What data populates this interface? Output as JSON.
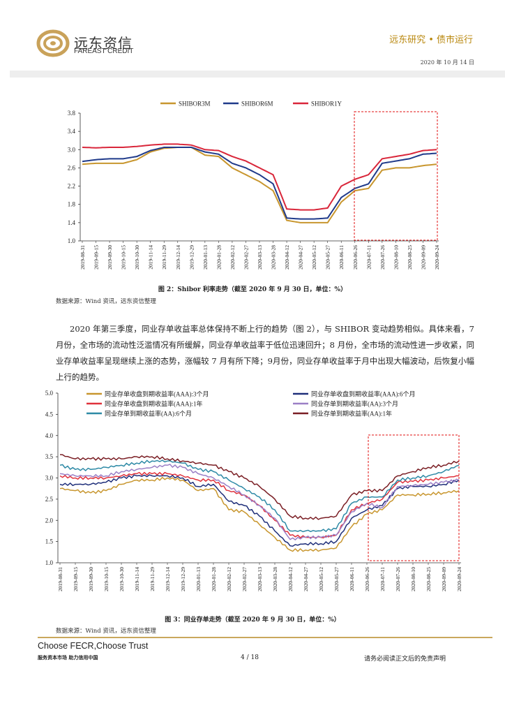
{
  "header": {
    "logo_cn": "远东资信",
    "logo_en": "FAREAST CREDIT",
    "series": "远东研究 • 债市运行",
    "date": "2020 年 10 月 14 日"
  },
  "figure2": {
    "caption": "图 2：Shibor 利率走势（截至 2020 年 9 月 30 日，单位：%）",
    "source": "数据来源：Wind 资讯，远东资信整理"
  },
  "paragraph": "2020 年第三季度，同业存单收益率总体保持不断上行的趋势（图 2），与 SHIBOR 变动趋势相似。具体来看，7 月份，全市场的流动性泛滥情况有所缓解，同业存单收益率于低位迅速回升；8 月份，全市场的流动性进一步收紧，同业存单收益率呈现继续上涨的态势，涨幅较 7 月有所下降；9月份，同业存单收益率于月中出现大幅波动，后恢复小幅上行的趋势。",
  "figure3": {
    "caption": "图 3：同业存单走势（截至 2020 年 9 月 30 日，单位：%）",
    "source": "数据来源：Wind 资讯，远东资信整理"
  },
  "footer": {
    "slogan": "Choose FECR,Choose Trust",
    "slogan2": "服务资本市场  助力信用中国",
    "page": "4  /  18",
    "disclaimer": "请务必阅读正文后的免责声明"
  },
  "chart_data": [
    {
      "type": "line",
      "title": "",
      "ylim": [
        1.0,
        3.8
      ],
      "yticks": [
        "1.0",
        "1.4",
        "1.8",
        "2.2",
        "2.6",
        "3.0",
        "3.4",
        "3.8"
      ],
      "categories": [
        "2019-08-31",
        "2019-09-15",
        "2019-09-30",
        "2019-10-15",
        "2019-10-30",
        "2019-11-14",
        "2019-11-29",
        "2019-12-14",
        "2019-12-29",
        "2020-01-13",
        "2020-01-28",
        "2020-02-12",
        "2020-02-27",
        "2020-03-13",
        "2020-03-28",
        "2020-04-12",
        "2020-04-27",
        "2020-05-12",
        "2020-05-27",
        "2020-06-11",
        "2020-06-26",
        "2020-07-11",
        "2020-07-26",
        "2020-08-10",
        "2020-08-25",
        "2020-09-09",
        "2020-09-24"
      ],
      "legend": "top",
      "highlight": "2020-07-01 to 2020-09-30",
      "series": [
        {
          "name": "SHIBOR3M",
          "color": "#c8962e",
          "values": [
            2.68,
            2.7,
            2.7,
            2.7,
            2.78,
            2.95,
            3.03,
            3.05,
            3.05,
            2.88,
            2.85,
            2.6,
            2.45,
            2.3,
            2.1,
            1.45,
            1.4,
            1.4,
            1.4,
            1.85,
            2.1,
            2.15,
            2.55,
            2.6,
            2.6,
            2.65,
            2.68
          ]
        },
        {
          "name": "SHIBOR6M",
          "color": "#1f3a8a",
          "values": [
            2.74,
            2.78,
            2.8,
            2.8,
            2.85,
            2.98,
            3.05,
            3.05,
            3.05,
            2.95,
            2.9,
            2.7,
            2.6,
            2.45,
            2.25,
            1.5,
            1.48,
            1.48,
            1.5,
            1.95,
            2.15,
            2.25,
            2.7,
            2.75,
            2.8,
            2.9,
            2.92
          ]
        },
        {
          "name": "SHIBOR1Y",
          "color": "#d9263a",
          "values": [
            3.05,
            3.04,
            3.05,
            3.05,
            3.07,
            3.1,
            3.12,
            3.12,
            3.1,
            3.0,
            2.98,
            2.85,
            2.75,
            2.6,
            2.45,
            1.7,
            1.68,
            1.68,
            1.72,
            2.2,
            2.35,
            2.45,
            2.8,
            2.85,
            2.9,
            2.98,
            3.0
          ]
        }
      ]
    },
    {
      "type": "line",
      "title": "",
      "ylim": [
        1.0,
        5.0
      ],
      "yticks": [
        "1.0",
        "1.5",
        "2.0",
        "2.5",
        "3.0",
        "3.5",
        "4.0",
        "4.5",
        "5.0"
      ],
      "categories": [
        "2019-08-31",
        "2019-09-15",
        "2019-09-30",
        "2019-10-15",
        "2019-10-30",
        "2019-11-14",
        "2019-11-29",
        "2019-12-14",
        "2019-12-29",
        "2020-01-13",
        "2020-01-28",
        "2020-02-12",
        "2020-02-27",
        "2020-03-13",
        "2020-03-28",
        "2020-04-12",
        "2020-04-27",
        "2020-05-12",
        "2020-05-27",
        "2020-06-11",
        "2020-06-26",
        "2020-07-11",
        "2020-07-26",
        "2020-08-10",
        "2020-08-25",
        "2020-09-09",
        "2020-09-24"
      ],
      "legend": "top",
      "highlight": "2020-07-01 to 2020-09-30",
      "series": [
        {
          "name": "同业存单收盘到期收益率(AAA):3个月",
          "color": "#c8962e",
          "values": [
            2.75,
            2.7,
            2.65,
            2.7,
            2.85,
            2.95,
            2.95,
            3.0,
            2.95,
            2.7,
            2.75,
            2.25,
            2.2,
            1.9,
            1.6,
            1.3,
            1.3,
            1.3,
            1.35,
            1.85,
            2.15,
            2.25,
            2.6,
            2.6,
            2.62,
            2.65,
            2.7
          ]
        },
        {
          "name": "同业存单收盘到期收益率(AAA):6个月",
          "color": "#1f2f7a",
          "values": [
            2.85,
            2.85,
            2.85,
            2.9,
            3.0,
            3.05,
            3.05,
            3.05,
            3.0,
            2.8,
            2.85,
            2.45,
            2.35,
            2.1,
            1.75,
            1.4,
            1.45,
            1.45,
            1.5,
            2.05,
            2.25,
            2.35,
            2.75,
            2.8,
            2.8,
            2.85,
            2.95
          ]
        },
        {
          "name": "同业存单收盘到期收益率(AAA):1年",
          "color": "#e0323c",
          "values": [
            3.05,
            3.0,
            3.0,
            3.0,
            3.05,
            3.1,
            3.1,
            3.1,
            3.05,
            2.95,
            2.95,
            2.7,
            2.6,
            2.35,
            2.0,
            1.65,
            1.6,
            1.6,
            1.65,
            2.25,
            2.4,
            2.5,
            2.9,
            2.92,
            2.95,
            3.0,
            3.05
          ]
        },
        {
          "name": "同业存单到期收益率(AA):3个月",
          "color": "#9b7fc6",
          "values": [
            3.1,
            3.05,
            3.05,
            3.05,
            3.15,
            3.2,
            3.25,
            3.3,
            3.25,
            3.1,
            3.0,
            2.8,
            2.6,
            2.35,
            2.05,
            1.55,
            1.6,
            1.6,
            1.65,
            2.2,
            2.4,
            2.3,
            2.8,
            2.82,
            2.85,
            2.9,
            2.95
          ]
        },
        {
          "name": "同业存单到期收益率(AA):6个月",
          "color": "#2e8aa6",
          "values": [
            3.3,
            3.2,
            3.2,
            3.25,
            3.3,
            3.35,
            3.4,
            3.4,
            3.35,
            3.2,
            3.15,
            2.95,
            2.75,
            2.55,
            2.25,
            1.75,
            1.75,
            1.75,
            1.8,
            2.4,
            2.55,
            2.55,
            2.95,
            3.0,
            3.05,
            3.15,
            3.3
          ]
        },
        {
          "name": "同业存单到期收益率(AA):1年",
          "color": "#7a1e24",
          "values": [
            3.55,
            3.45,
            3.45,
            3.45,
            3.45,
            3.5,
            3.5,
            3.45,
            3.4,
            3.35,
            3.3,
            3.15,
            3.0,
            2.8,
            2.5,
            2.1,
            2.05,
            2.05,
            2.1,
            2.6,
            2.7,
            2.7,
            3.05,
            3.15,
            3.25,
            3.3,
            3.4
          ]
        }
      ]
    }
  ]
}
